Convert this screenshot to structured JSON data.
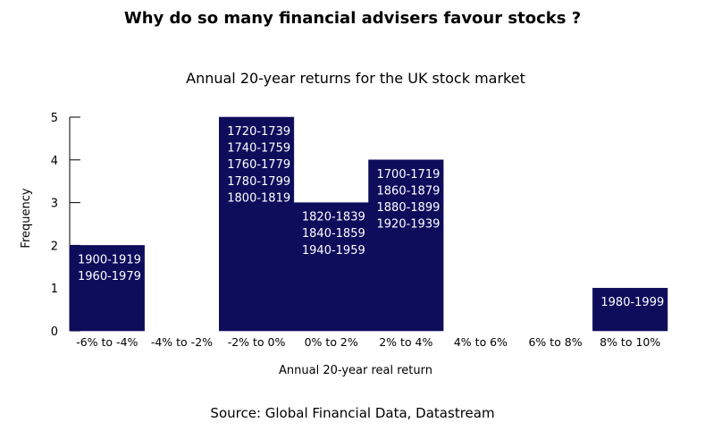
{
  "header": {
    "title": "Why do so many financial advisers favour stocks ?"
  },
  "footer": {
    "source": "Source: Global Financial Data, Datastream"
  },
  "chart_data": {
    "type": "bar",
    "title": "Annual 20-year returns for the UK stock market",
    "xlabel": "Annual 20-year real return",
    "ylabel": "Frequency",
    "ylim": [
      0,
      5
    ],
    "yticks": [
      "0",
      "1",
      "2",
      "3",
      "4",
      "5"
    ],
    "grid": false,
    "bar_color": "#0e0d5c",
    "categories": [
      "-6% to -4%",
      "-4% to -2%",
      "-2% to 0%",
      "0% to 2%",
      "2% to 4%",
      "4% to 6%",
      "6% to 8%",
      "8% to 10%"
    ],
    "values": [
      2,
      0,
      5,
      3,
      4,
      0,
      0,
      1
    ],
    "bar_labels": [
      [
        "1900-1919",
        "1960-1979"
      ],
      [],
      [
        "1720-1739",
        "1740-1759",
        "1760-1779",
        "1780-1799",
        "1800-1819"
      ],
      [
        "1820-1839",
        "1840-1859",
        "1940-1959"
      ],
      [
        "1700-1719",
        "1860-1879",
        "1880-1899",
        "1920-1939"
      ],
      [],
      [],
      [
        "1980-1999"
      ]
    ]
  }
}
